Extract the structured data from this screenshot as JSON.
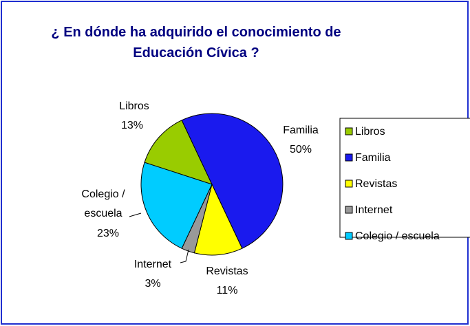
{
  "chart_data": {
    "type": "pie",
    "title": "¿ En dónde ha adquirido el conocimiento de Educación Cívica ?",
    "categories": [
      "Libros",
      "Familia",
      "Revistas",
      "Internet",
      "Colegio / escuela"
    ],
    "values": [
      13,
      50,
      11,
      3,
      23
    ],
    "value_labels": [
      "13%",
      "50%",
      "11%",
      "3%",
      "23%"
    ],
    "colors": [
      "#99cc00",
      "#1a1aee",
      "#ffff00",
      "#999999",
      "#00ccff"
    ],
    "legend": "right"
  }
}
